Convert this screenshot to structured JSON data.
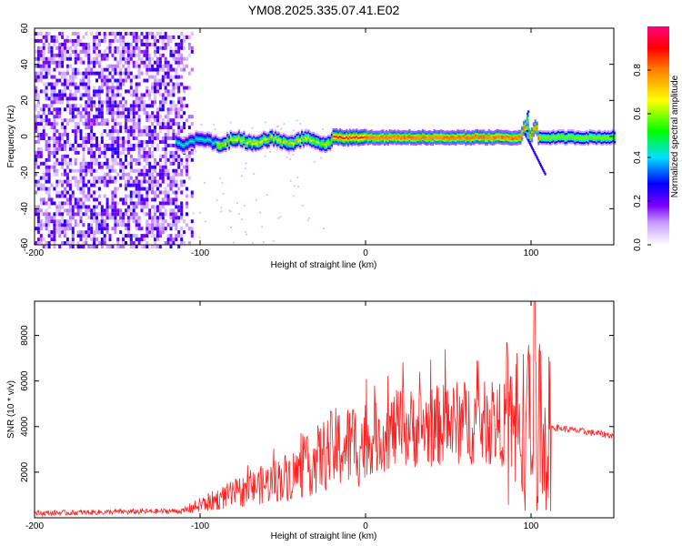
{
  "figure_title": "YM08.2025.335.07.41.E02",
  "chart_data": [
    {
      "type": "heatmap",
      "title": "YM08.2025.335.07.41.E02",
      "xlabel": "Height of straight line (km)",
      "ylabel": "Frequency (Hz)",
      "xlim": [
        -200,
        150
      ],
      "ylim": [
        -60,
        60
      ],
      "xticks": [
        -200,
        -100,
        0,
        100
      ],
      "yticks": [
        -60,
        -40,
        -20,
        0,
        20,
        40,
        60
      ],
      "colorbar": {
        "label": "Normalized spectral amplitude",
        "range": [
          0,
          1
        ],
        "ticks": [
          "0.0",
          "0.2",
          "0.4",
          "0.6",
          "0.8"
        ],
        "colormap": [
          "#ffffff",
          "#7a00ff",
          "#0000ff",
          "#00e0ff",
          "#00ff00",
          "#ffff00",
          "#ff8000",
          "#ff0000",
          "#ff0080"
        ]
      },
      "features": [
        {
          "name": "noise scatter",
          "x_range": [
            -200,
            -105
          ],
          "freq_range": [
            -60,
            60
          ],
          "amplitude": 0.15
        },
        {
          "name": "signal trace",
          "x_range": [
            -115,
            150
          ],
          "center_freq": 0,
          "peak_amplitude": 0.95
        },
        {
          "name": "tail",
          "x_range": [
            95,
            108
          ],
          "freq_range": [
            -22,
            15
          ]
        }
      ]
    },
    {
      "type": "line",
      "xlabel": "Height of straight line (km)",
      "ylabel": "SNR (10 * v/v)",
      "xlim": [
        -200,
        150
      ],
      "ylim": [
        0,
        9500
      ],
      "xticks": [
        -200,
        -100,
        0,
        100
      ],
      "yticks": [
        2000,
        4000,
        6000,
        8000
      ],
      "color": "#ff2020",
      "series_envelope": [
        {
          "x": -200,
          "y": 200
        },
        {
          "x": -110,
          "y": 300
        },
        {
          "x": -90,
          "y": 800
        },
        {
          "x": -60,
          "y": 1500
        },
        {
          "x": -40,
          "y": 2000
        },
        {
          "x": -20,
          "y": 3000
        },
        {
          "x": 0,
          "y": 3300
        },
        {
          "x": 20,
          "y": 3900
        },
        {
          "x": 40,
          "y": 4000
        },
        {
          "x": 60,
          "y": 4200
        },
        {
          "x": 80,
          "y": 4100
        },
        {
          "x": 100,
          "y": 4000
        },
        {
          "x": 110,
          "y": 4000
        },
        {
          "x": 150,
          "y": 3600
        }
      ],
      "peak": {
        "x": 102,
        "y": 9500
      }
    }
  ]
}
